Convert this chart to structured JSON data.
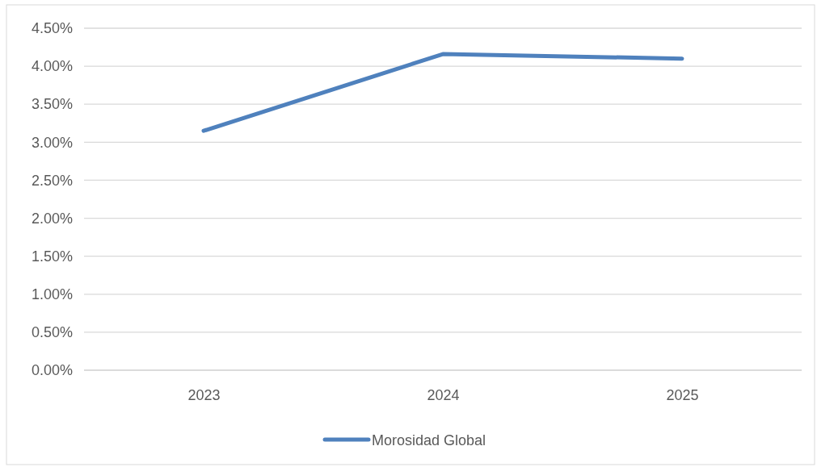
{
  "chart_data": {
    "type": "line",
    "categories": [
      "2023",
      "2024",
      "2025"
    ],
    "series": [
      {
        "name": "Morosidad Global",
        "color": "#4f81bd",
        "values": [
          3.15,
          4.16,
          4.1
        ]
      }
    ],
    "ylim": [
      0,
      4.5
    ],
    "yticks": [
      {
        "value": 0,
        "label": "0.00%"
      },
      {
        "value": 0.5,
        "label": "0.50%"
      },
      {
        "value": 1,
        "label": "1.00%"
      },
      {
        "value": 1.5,
        "label": "1.50%"
      },
      {
        "value": 2,
        "label": "2.00%"
      },
      {
        "value": 2.5,
        "label": "2.50%"
      },
      {
        "value": 3,
        "label": "3.00%"
      },
      {
        "value": 3.5,
        "label": "3.50%"
      },
      {
        "value": 4,
        "label": "4.00%"
      },
      {
        "value": 4.5,
        "label": "4.50%"
      }
    ],
    "grid": "y",
    "legend": "bottom",
    "marker": "none",
    "line_style": "solid"
  }
}
